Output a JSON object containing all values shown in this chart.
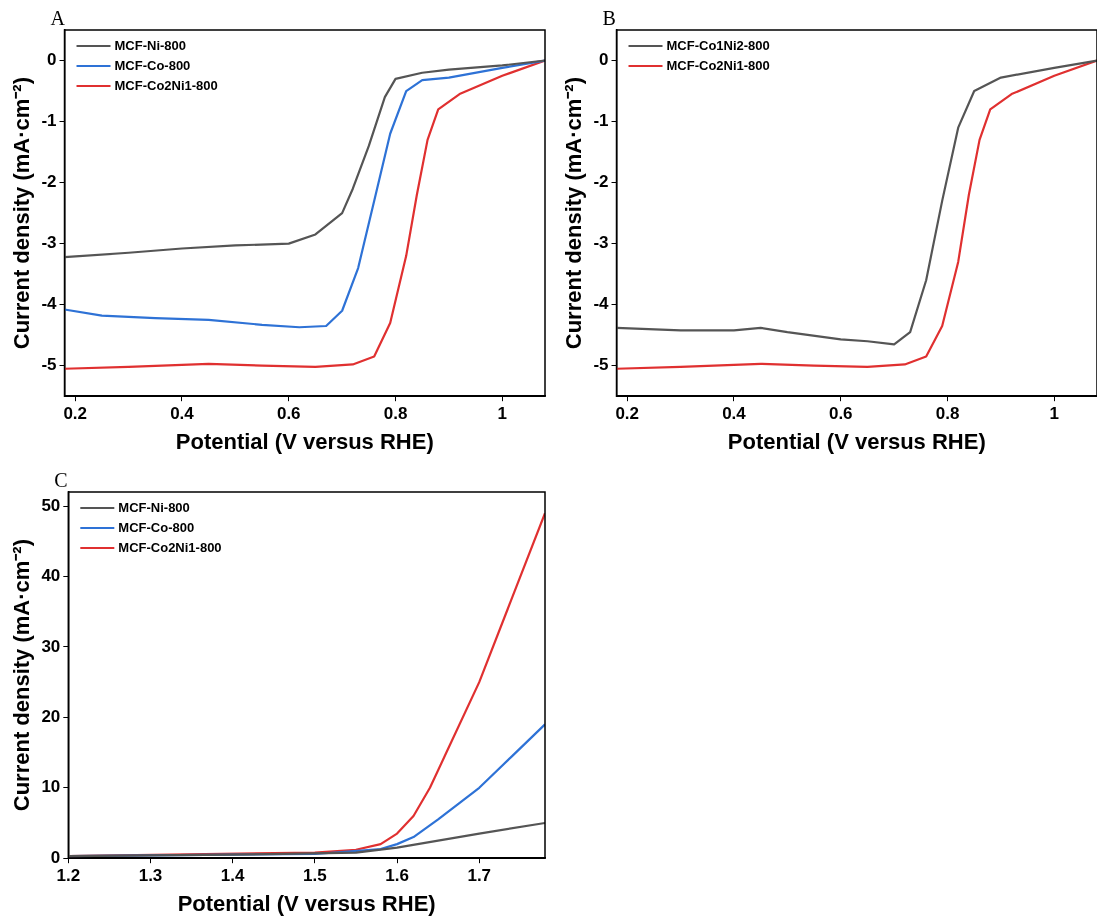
{
  "chart_data": [
    {
      "type": "line",
      "xlabel": "Potential (V versus RHE)",
      "ylabel": "Current density (mA·cm⁻²)",
      "annotations": [
        "A"
      ],
      "xlim": [
        0.18,
        1.08
      ],
      "xticks": [
        0.2,
        0.4,
        0.6,
        0.8,
        1.0
      ],
      "ylim": [
        -5.5,
        0.5
      ],
      "yticks": [
        -5,
        -4,
        -3,
        -2,
        -1,
        0
      ],
      "grid": false,
      "legend": "top left",
      "marker": "none",
      "line_style": "solid",
      "series": [
        {
          "name": "MCF-Ni-800",
          "color": "#555555",
          "x": [
            0.18,
            0.3,
            0.4,
            0.5,
            0.6,
            0.65,
            0.7,
            0.72,
            0.75,
            0.78,
            0.8,
            0.85,
            0.9,
            1.0,
            1.08
          ],
          "values": [
            -3.22,
            -3.15,
            -3.08,
            -3.03,
            -3.0,
            -2.85,
            -2.5,
            -2.1,
            -1.4,
            -0.6,
            -0.3,
            -0.2,
            -0.15,
            -0.08,
            0
          ]
        },
        {
          "name": "MCF-Co-800",
          "color": "#2e72d6",
          "x": [
            0.18,
            0.25,
            0.35,
            0.45,
            0.55,
            0.62,
            0.67,
            0.7,
            0.73,
            0.76,
            0.79,
            0.82,
            0.85,
            0.9,
            1.0,
            1.08
          ],
          "values": [
            -4.08,
            -4.18,
            -4.22,
            -4.25,
            -4.33,
            -4.37,
            -4.35,
            -4.1,
            -3.4,
            -2.3,
            -1.2,
            -0.5,
            -0.32,
            -0.28,
            -0.12,
            0
          ]
        },
        {
          "name": "MCF-Co2Ni1-800",
          "color": "#e03030",
          "x": [
            0.18,
            0.3,
            0.45,
            0.55,
            0.65,
            0.72,
            0.76,
            0.79,
            0.82,
            0.84,
            0.86,
            0.88,
            0.92,
            1.0,
            1.08
          ],
          "values": [
            -5.05,
            -5.02,
            -4.97,
            -5.0,
            -5.02,
            -4.98,
            -4.85,
            -4.3,
            -3.2,
            -2.2,
            -1.3,
            -0.8,
            -0.55,
            -0.25,
            0
          ]
        }
      ]
    },
    {
      "type": "line",
      "xlabel": "Potential (V versus RHE)",
      "ylabel": "Current density (mA·cm⁻²)",
      "annotations": [
        "B"
      ],
      "xlim": [
        0.18,
        1.08
      ],
      "xticks": [
        0.2,
        0.4,
        0.6,
        0.8,
        1.0
      ],
      "ylim": [
        -5.5,
        0.5
      ],
      "yticks": [
        -5,
        -4,
        -3,
        -2,
        -1,
        0
      ],
      "grid": false,
      "legend": "top left",
      "marker": "none",
      "line_style": "solid",
      "series": [
        {
          "name": "MCF-Co1Ni2-800",
          "color": "#555555",
          "x": [
            0.18,
            0.3,
            0.4,
            0.45,
            0.5,
            0.6,
            0.65,
            0.7,
            0.73,
            0.76,
            0.79,
            0.82,
            0.85,
            0.9,
            1.0,
            1.08
          ],
          "values": [
            -4.38,
            -4.42,
            -4.42,
            -4.38,
            -4.45,
            -4.57,
            -4.6,
            -4.65,
            -4.45,
            -3.6,
            -2.3,
            -1.1,
            -0.5,
            -0.28,
            -0.12,
            0
          ]
        },
        {
          "name": "MCF-Co2Ni1-800",
          "color": "#e03030",
          "x": [
            0.18,
            0.3,
            0.45,
            0.55,
            0.65,
            0.72,
            0.76,
            0.79,
            0.82,
            0.84,
            0.86,
            0.88,
            0.92,
            1.0,
            1.08
          ],
          "values": [
            -5.05,
            -5.02,
            -4.97,
            -5.0,
            -5.02,
            -4.98,
            -4.85,
            -4.35,
            -3.3,
            -2.2,
            -1.3,
            -0.8,
            -0.55,
            -0.25,
            0
          ]
        }
      ]
    },
    {
      "type": "line",
      "xlabel": "Potential (V versus RHE)",
      "ylabel": "Current density (mA·cm⁻²)",
      "annotations": [
        "C"
      ],
      "xlim": [
        1.2,
        1.78
      ],
      "xticks": [
        1.2,
        1.3,
        1.4,
        1.5,
        1.6,
        1.7
      ],
      "ylim": [
        0,
        52
      ],
      "yticks": [
        0,
        10,
        20,
        30,
        40,
        50
      ],
      "grid": false,
      "legend": "top left",
      "marker": "none",
      "line_style": "solid",
      "series": [
        {
          "name": "MCF-Ni-800",
          "color": "#555555",
          "x": [
            1.2,
            1.4,
            1.55,
            1.6,
            1.65,
            1.7,
            1.78
          ],
          "values": [
            0.3,
            0.5,
            0.8,
            1.5,
            2.5,
            3.5,
            5
          ]
        },
        {
          "name": "MCF-Co-800",
          "color": "#2e72d6",
          "x": [
            1.2,
            1.4,
            1.5,
            1.58,
            1.6,
            1.62,
            1.65,
            1.7,
            1.74,
            1.78
          ],
          "values": [
            0.3,
            0.5,
            0.6,
            1.3,
            2,
            3,
            5.5,
            10,
            14.5,
            19
          ]
        },
        {
          "name": "MCF-Co2Ni1-800",
          "color": "#e03030",
          "x": [
            1.2,
            1.5,
            1.55,
            1.58,
            1.6,
            1.62,
            1.64,
            1.66,
            1.7,
            1.74,
            1.78
          ],
          "values": [
            0.3,
            0.8,
            1.2,
            2,
            3.5,
            6,
            10,
            15,
            25,
            37,
            49
          ]
        }
      ]
    }
  ]
}
